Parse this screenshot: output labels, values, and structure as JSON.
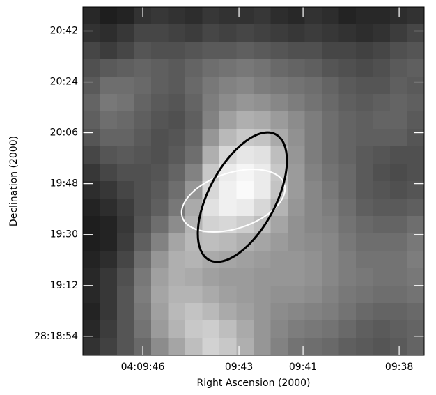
{
  "chart_data": {
    "type": "image",
    "x_label": "Right Ascension (2000)",
    "y_label": "Declination (2000)",
    "xlim": [
      47.87,
      37.22
    ],
    "ylim": [
      47.3,
      170.5
    ],
    "xticks": [
      {
        "value": 46,
        "label": "04:09:46"
      },
      {
        "value": 43,
        "label": "09:43"
      },
      {
        "value": 41,
        "label": "09:41"
      },
      {
        "value": 38,
        "label": "09:38"
      }
    ],
    "yticks": [
      {
        "value": 162,
        "label": "20:42"
      },
      {
        "value": 144,
        "label": "20:24"
      },
      {
        "value": 126,
        "label": "20:06"
      },
      {
        "value": 108,
        "label": "19:48"
      },
      {
        "value": 90,
        "label": "19:30"
      },
      {
        "value": 72,
        "label": "19:12"
      },
      {
        "value": 54,
        "label": "28:18:54"
      }
    ],
    "pixels": [
      [
        40,
        30,
        35,
        50,
        55,
        50,
        45,
        55,
        50,
        50,
        55,
        45,
        40,
        50,
        45,
        35,
        40,
        40,
        45,
        50
      ],
      [
        50,
        45,
        55,
        70,
        70,
        65,
        60,
        70,
        65,
        70,
        65,
        60,
        55,
        60,
        55,
        50,
        45,
        50,
        60,
        70
      ],
      [
        70,
        60,
        70,
        85,
        80,
        80,
        85,
        90,
        90,
        95,
        90,
        85,
        80,
        80,
        70,
        70,
        65,
        70,
        80,
        85
      ],
      [
        80,
        90,
        95,
        100,
        95,
        90,
        100,
        110,
        115,
        120,
        115,
        105,
        100,
        95,
        85,
        80,
        75,
        80,
        90,
        95
      ],
      [
        90,
        110,
        110,
        105,
        95,
        90,
        105,
        120,
        130,
        135,
        125,
        120,
        115,
        110,
        100,
        90,
        85,
        85,
        95,
        90
      ],
      [
        100,
        120,
        115,
        100,
        90,
        85,
        100,
        125,
        140,
        150,
        145,
        135,
        125,
        115,
        105,
        95,
        90,
        95,
        100,
        95
      ],
      [
        95,
        110,
        105,
        95,
        85,
        80,
        95,
        130,
        160,
        175,
        170,
        155,
        140,
        125,
        110,
        100,
        95,
        100,
        100,
        90
      ],
      [
        85,
        100,
        100,
        90,
        80,
        85,
        100,
        150,
        185,
        200,
        195,
        170,
        145,
        125,
        110,
        100,
        95,
        95,
        95,
        85
      ],
      [
        70,
        85,
        90,
        85,
        80,
        90,
        110,
        175,
        215,
        230,
        225,
        190,
        150,
        125,
        110,
        100,
        90,
        85,
        80,
        80
      ],
      [
        55,
        70,
        80,
        80,
        85,
        100,
        130,
        200,
        235,
        245,
        235,
        200,
        155,
        130,
        115,
        105,
        90,
        80,
        75,
        80
      ],
      [
        45,
        55,
        70,
        80,
        90,
        110,
        150,
        215,
        240,
        250,
        235,
        195,
        155,
        135,
        120,
        105,
        90,
        85,
        80,
        85
      ],
      [
        35,
        45,
        60,
        80,
        95,
        120,
        170,
        225,
        240,
        235,
        215,
        180,
        150,
        135,
        125,
        110,
        95,
        90,
        90,
        95
      ],
      [
        30,
        35,
        55,
        85,
        110,
        140,
        180,
        210,
        215,
        205,
        190,
        165,
        145,
        135,
        130,
        115,
        105,
        100,
        100,
        110
      ],
      [
        30,
        35,
        60,
        95,
        130,
        165,
        185,
        190,
        185,
        175,
        165,
        155,
        145,
        140,
        135,
        120,
        110,
        110,
        110,
        120
      ],
      [
        35,
        45,
        70,
        110,
        150,
        175,
        180,
        170,
        165,
        160,
        155,
        150,
        150,
        145,
        135,
        125,
        115,
        115,
        115,
        125
      ],
      [
        40,
        55,
        80,
        120,
        160,
        175,
        170,
        160,
        155,
        155,
        150,
        150,
        150,
        145,
        135,
        125,
        120,
        115,
        115,
        120
      ],
      [
        40,
        55,
        85,
        125,
        165,
        180,
        180,
        170,
        160,
        155,
        150,
        145,
        145,
        140,
        130,
        120,
        115,
        110,
        110,
        115
      ],
      [
        35,
        55,
        85,
        120,
        160,
        185,
        195,
        185,
        170,
        160,
        150,
        140,
        135,
        130,
        125,
        115,
        105,
        100,
        100,
        105
      ],
      [
        40,
        60,
        85,
        115,
        155,
        180,
        200,
        205,
        190,
        170,
        150,
        135,
        125,
        120,
        115,
        105,
        95,
        90,
        95,
        100
      ],
      [
        50,
        65,
        85,
        105,
        140,
        165,
        190,
        210,
        200,
        175,
        150,
        130,
        115,
        110,
        105,
        95,
        90,
        85,
        90,
        100
      ]
    ]
  }
}
